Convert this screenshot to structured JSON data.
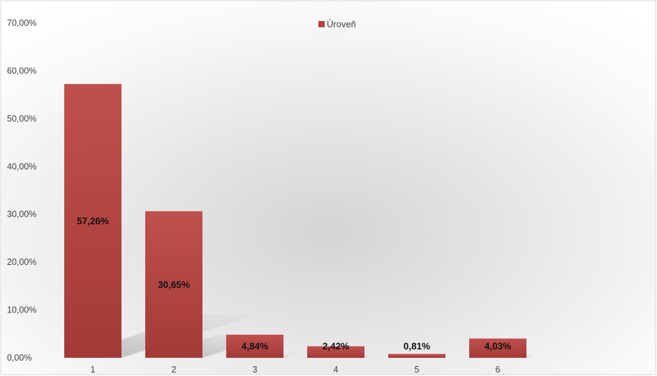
{
  "chart_data": {
    "type": "bar",
    "title": "",
    "xlabel": "",
    "ylabel": "",
    "categories": [
      "1",
      "2",
      "3",
      "4",
      "5",
      "6"
    ],
    "series": [
      {
        "name": "Úroveň",
        "values": [
          57.26,
          30.65,
          4.84,
          2.42,
          0.81,
          4.03
        ],
        "labels": [
          "57,26%",
          "30,65%",
          "4,84%",
          "2,42%",
          "0,81%",
          "4,03%"
        ],
        "color": "#b5403f"
      }
    ],
    "ylim": [
      0,
      70
    ],
    "y_ticks": [
      0,
      10,
      20,
      30,
      40,
      50,
      60,
      70
    ],
    "y_tick_labels": [
      "0,00%",
      "10,00%",
      "20,00%",
      "30,00%",
      "40,00%",
      "50,00%",
      "60,00%",
      "70,00%"
    ],
    "grid": false,
    "legend": {
      "position": "top-center",
      "entries": [
        "Úroveň"
      ]
    },
    "background": "gradient-gray",
    "bar_shadow": true
  }
}
